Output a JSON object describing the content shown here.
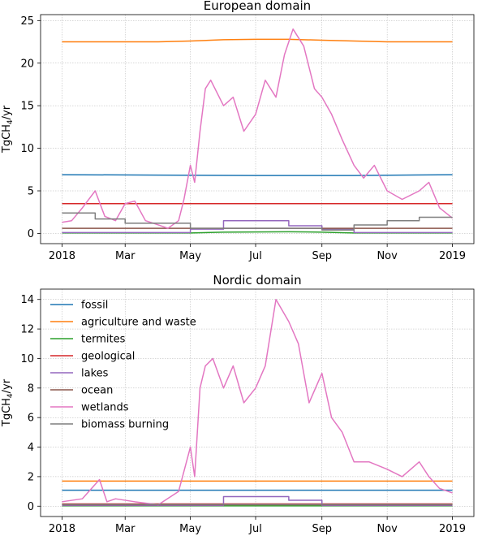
{
  "chart_data": [
    {
      "type": "line",
      "title": "European domain",
      "ylabel": "TgCH4/yr",
      "xlim": [
        "2018-01-01",
        "2019-01-01"
      ],
      "ylim": [
        -1.2,
        25.7
      ],
      "yticks": [
        0,
        5,
        10,
        15,
        20,
        25
      ],
      "xticks": [
        {
          "date": "2018-01-01",
          "label": "2018"
        },
        {
          "date": "2018-03-01",
          "label": "Mar"
        },
        {
          "date": "2018-05-01",
          "label": "May"
        },
        {
          "date": "2018-07-01",
          "label": "Jul"
        },
        {
          "date": "2018-09-01",
          "label": "Sep"
        },
        {
          "date": "2018-11-01",
          "label": "Nov"
        },
        {
          "date": "2019-01-01",
          "label": "2019"
        }
      ],
      "grid": true,
      "series": [
        {
          "name": "fossil",
          "color": "#1f77b4",
          "x": [
            "2018-01-01",
            "2018-04-01",
            "2018-07-01",
            "2018-10-01",
            "2019-01-01"
          ],
          "y": [
            6.9,
            6.85,
            6.8,
            6.8,
            6.9
          ]
        },
        {
          "name": "agriculture and waste",
          "color": "#ff7f0e",
          "x": [
            "2018-01-01",
            "2018-04-01",
            "2018-05-01",
            "2018-06-01",
            "2018-07-01",
            "2018-08-01",
            "2018-09-01",
            "2018-10-01",
            "2018-11-01",
            "2019-01-01"
          ],
          "y": [
            22.5,
            22.5,
            22.6,
            22.75,
            22.8,
            22.8,
            22.7,
            22.6,
            22.5,
            22.5
          ]
        },
        {
          "name": "termites",
          "color": "#2ca02c",
          "x": [
            "2018-01-01",
            "2018-05-01",
            "2018-06-01",
            "2018-08-01",
            "2018-09-01",
            "2018-10-01",
            "2019-01-01"
          ],
          "y": [
            0.05,
            0.05,
            0.15,
            0.2,
            0.15,
            0.05,
            0.05
          ]
        },
        {
          "name": "geological",
          "color": "#d62728",
          "x": [
            "2018-01-01",
            "2019-01-01"
          ],
          "y": [
            3.5,
            3.5
          ]
        },
        {
          "name": "lakes",
          "color": "#9467bd",
          "x": [
            "2018-01-01",
            "2018-05-01",
            "2018-05-01",
            "2018-06-01",
            "2018-06-01",
            "2018-08-01",
            "2018-08-01",
            "2018-09-01",
            "2018-09-01",
            "2018-10-01",
            "2018-10-01",
            "2019-01-01"
          ],
          "y": [
            0.1,
            0.1,
            0.5,
            0.5,
            1.5,
            1.5,
            0.9,
            0.9,
            0.5,
            0.5,
            0.1,
            0.1
          ]
        },
        {
          "name": "ocean",
          "color": "#8c564b",
          "x": [
            "2018-01-01",
            "2019-01-01"
          ],
          "y": [
            0.6,
            0.6
          ]
        },
        {
          "name": "wetlands",
          "color": "#e377c2",
          "x": [
            "2018-01-01",
            "2018-01-10",
            "2018-01-20",
            "2018-02-01",
            "2018-02-10",
            "2018-02-20",
            "2018-03-01",
            "2018-03-10",
            "2018-03-20",
            "2018-04-01",
            "2018-04-10",
            "2018-04-20",
            "2018-04-25",
            "2018-05-01",
            "2018-05-05",
            "2018-05-10",
            "2018-05-15",
            "2018-05-20",
            "2018-06-01",
            "2018-06-10",
            "2018-06-20",
            "2018-07-01",
            "2018-07-10",
            "2018-07-20",
            "2018-07-28",
            "2018-08-05",
            "2018-08-15",
            "2018-08-25",
            "2018-09-01",
            "2018-09-10",
            "2018-09-20",
            "2018-10-01",
            "2018-10-10",
            "2018-10-20",
            "2018-11-01",
            "2018-11-15",
            "2018-12-01",
            "2018-12-10",
            "2018-12-20",
            "2019-01-01"
          ],
          "y": [
            1.3,
            1.5,
            3.0,
            5.0,
            2.0,
            1.5,
            3.5,
            3.8,
            1.5,
            1.0,
            0.6,
            1.5,
            4.0,
            8.0,
            6.0,
            12.0,
            17.0,
            18.0,
            15.0,
            16.0,
            12.0,
            14.0,
            18.0,
            16.0,
            21.0,
            24.0,
            22.0,
            17.0,
            16.0,
            14.0,
            11.0,
            8.0,
            6.5,
            8.0,
            5.0,
            4.0,
            5.0,
            6.0,
            3.0,
            1.8
          ]
        },
        {
          "name": "biomass burning",
          "color": "#7f7f7f",
          "x": [
            "2018-01-01",
            "2018-02-01",
            "2018-02-01",
            "2018-03-01",
            "2018-03-01",
            "2018-05-01",
            "2018-05-01",
            "2018-06-01",
            "2018-06-01",
            "2018-09-01",
            "2018-09-01",
            "2018-10-01",
            "2018-10-01",
            "2018-11-01",
            "2018-11-01",
            "2018-12-01",
            "2018-12-01",
            "2019-01-01"
          ],
          "y": [
            2.4,
            2.4,
            1.7,
            1.7,
            1.2,
            1.2,
            0.6,
            0.6,
            0.6,
            0.6,
            0.4,
            0.4,
            1.0,
            1.0,
            1.5,
            1.5,
            1.9,
            1.9
          ]
        }
      ]
    },
    {
      "type": "line",
      "title": "Nordic domain",
      "ylabel": "TgCH4/yr",
      "xlim": [
        "2018-01-01",
        "2019-01-01"
      ],
      "ylim": [
        -0.7,
        14.7
      ],
      "yticks": [
        0,
        2,
        4,
        6,
        8,
        10,
        12,
        14
      ],
      "xticks": [
        {
          "date": "2018-01-01",
          "label": "2018"
        },
        {
          "date": "2018-03-01",
          "label": "Mar"
        },
        {
          "date": "2018-05-01",
          "label": "May"
        },
        {
          "date": "2018-07-01",
          "label": "Jul"
        },
        {
          "date": "2018-09-01",
          "label": "Sep"
        },
        {
          "date": "2018-11-01",
          "label": "Nov"
        },
        {
          "date": "2019-01-01",
          "label": "2019"
        }
      ],
      "grid": true,
      "legend": "upper-left",
      "series": [
        {
          "name": "fossil",
          "color": "#1f77b4",
          "x": [
            "2018-01-01",
            "2019-01-01"
          ],
          "y": [
            1.08,
            1.08
          ]
        },
        {
          "name": "agriculture and waste",
          "color": "#ff7f0e",
          "x": [
            "2018-01-01",
            "2019-01-01"
          ],
          "y": [
            1.7,
            1.7
          ]
        },
        {
          "name": "termites",
          "color": "#2ca02c",
          "x": [
            "2018-01-01",
            "2019-01-01"
          ],
          "y": [
            0.02,
            0.02
          ]
        },
        {
          "name": "geological",
          "color": "#d62728",
          "x": [
            "2018-01-01",
            "2019-01-01"
          ],
          "y": [
            0.15,
            0.15
          ]
        },
        {
          "name": "lakes",
          "color": "#9467bd",
          "x": [
            "2018-01-01",
            "2018-06-01",
            "2018-06-01",
            "2018-08-01",
            "2018-08-01",
            "2018-09-01",
            "2018-09-01",
            "2019-01-01"
          ],
          "y": [
            0.05,
            0.05,
            0.65,
            0.65,
            0.4,
            0.4,
            0.05,
            0.05
          ]
        },
        {
          "name": "ocean",
          "color": "#8c564b",
          "x": [
            "2018-01-01",
            "2019-01-01"
          ],
          "y": [
            0.1,
            0.1
          ]
        },
        {
          "name": "wetlands",
          "color": "#e377c2",
          "x": [
            "2018-01-01",
            "2018-01-20",
            "2018-02-05",
            "2018-02-12",
            "2018-02-20",
            "2018-03-10",
            "2018-04-01",
            "2018-04-20",
            "2018-05-01",
            "2018-05-05",
            "2018-05-10",
            "2018-05-15",
            "2018-05-22",
            "2018-06-01",
            "2018-06-10",
            "2018-06-20",
            "2018-07-01",
            "2018-07-10",
            "2018-07-20",
            "2018-08-01",
            "2018-08-10",
            "2018-08-20",
            "2018-09-01",
            "2018-09-10",
            "2018-09-20",
            "2018-10-01",
            "2018-10-15",
            "2018-11-01",
            "2018-11-15",
            "2018-12-01",
            "2018-12-10",
            "2018-12-20",
            "2019-01-01"
          ],
          "y": [
            0.3,
            0.5,
            1.8,
            0.3,
            0.5,
            0.3,
            0.1,
            1.0,
            4.0,
            2.0,
            8.0,
            9.5,
            10.0,
            8.0,
            9.5,
            7.0,
            8.0,
            9.5,
            14.0,
            12.5,
            11.0,
            7.0,
            9.0,
            6.0,
            5.0,
            3.0,
            3.0,
            2.5,
            2.0,
            3.0,
            2.0,
            1.2,
            0.9
          ]
        },
        {
          "name": "biomass burning",
          "color": "#7f7f7f",
          "x": [
            "2018-01-01",
            "2019-01-01"
          ],
          "y": [
            0.12,
            0.12
          ]
        }
      ]
    }
  ]
}
